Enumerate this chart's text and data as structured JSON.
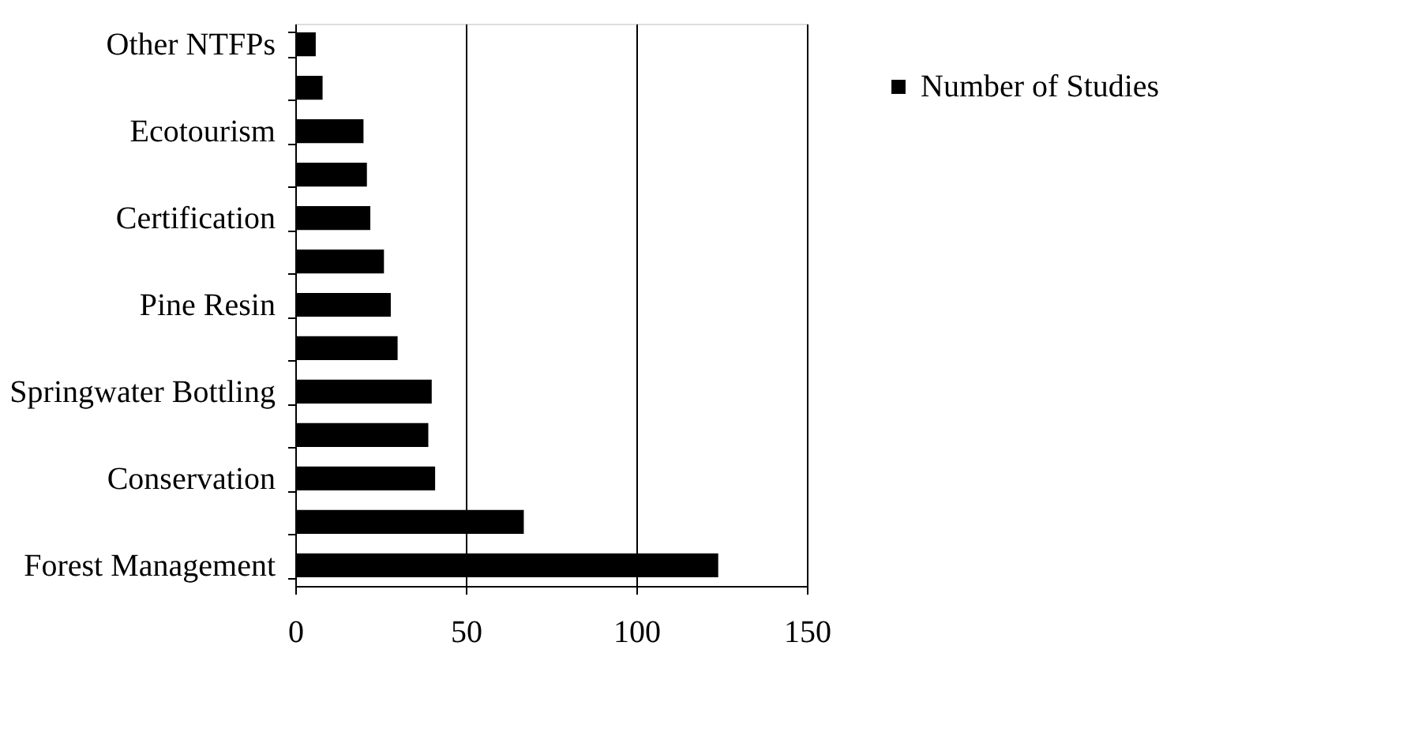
{
  "chart_data": {
    "type": "bar",
    "orientation": "horizontal",
    "categories": [
      "Other NTFPs",
      null,
      "Ecotourism",
      null,
      "Certification",
      null,
      "Pine Resin",
      null,
      "Springwater Bottling",
      null,
      "Conservation",
      null,
      "Forest Management"
    ],
    "series": [
      {
        "name": "Number of Studies",
        "color": "#000000",
        "values": [
          6,
          8,
          20,
          21,
          22,
          26,
          28,
          30,
          40,
          39,
          41,
          67,
          124
        ]
      }
    ],
    "xlim": [
      0,
      150
    ],
    "xticks": [
      0,
      50,
      100,
      150
    ],
    "grid": "x",
    "legend": "right"
  }
}
